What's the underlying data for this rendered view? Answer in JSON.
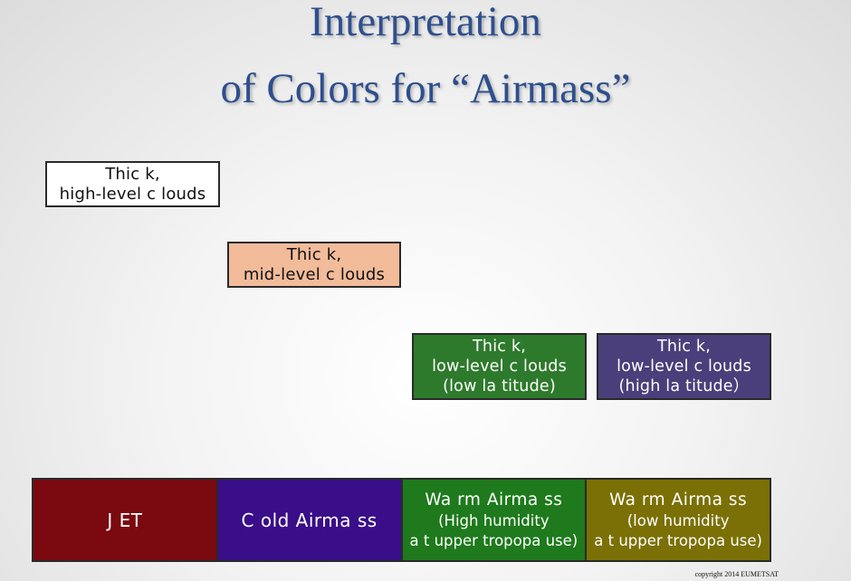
{
  "title": {
    "line1": "Interpretation",
    "line2": "of Colors for “Airmass”"
  },
  "cloud_boxes": {
    "high": {
      "line1": "Thic k,",
      "line2": "high-level c louds",
      "color": "#ffffff"
    },
    "mid": {
      "line1": "Thic k,",
      "line2": "mid-level c louds",
      "color": "#f2bb9a"
    },
    "low_low_lat": {
      "line1": "Thic k,",
      "line2": "low-level c louds",
      "line3": "(low la titude)",
      "color": "#2e7a2c"
    },
    "low_high_lat": {
      "line1": "Thic k,",
      "line2": "low-level c louds",
      "line3": "(high la titude）",
      "color": "#4a3f7a"
    }
  },
  "airmass_bar": {
    "jet": {
      "label": "J ET",
      "color": "#7a0a10"
    },
    "cold": {
      "label": "C old Airma ss",
      "color": "#3a0e88"
    },
    "warm_high_humidity": {
      "label": "Wa rm Airma ss",
      "line2": "(High humidity",
      "line3": "a t upper tropopa use)",
      "color": "#1e7a1c"
    },
    "warm_low_humidity": {
      "label": "Wa rm Airma ss",
      "line2": "(low humidity",
      "line3": "a t upper tropopa use)",
      "color": "#7a7005"
    }
  },
  "copyright": "copyright 2014 EUMETSAT"
}
